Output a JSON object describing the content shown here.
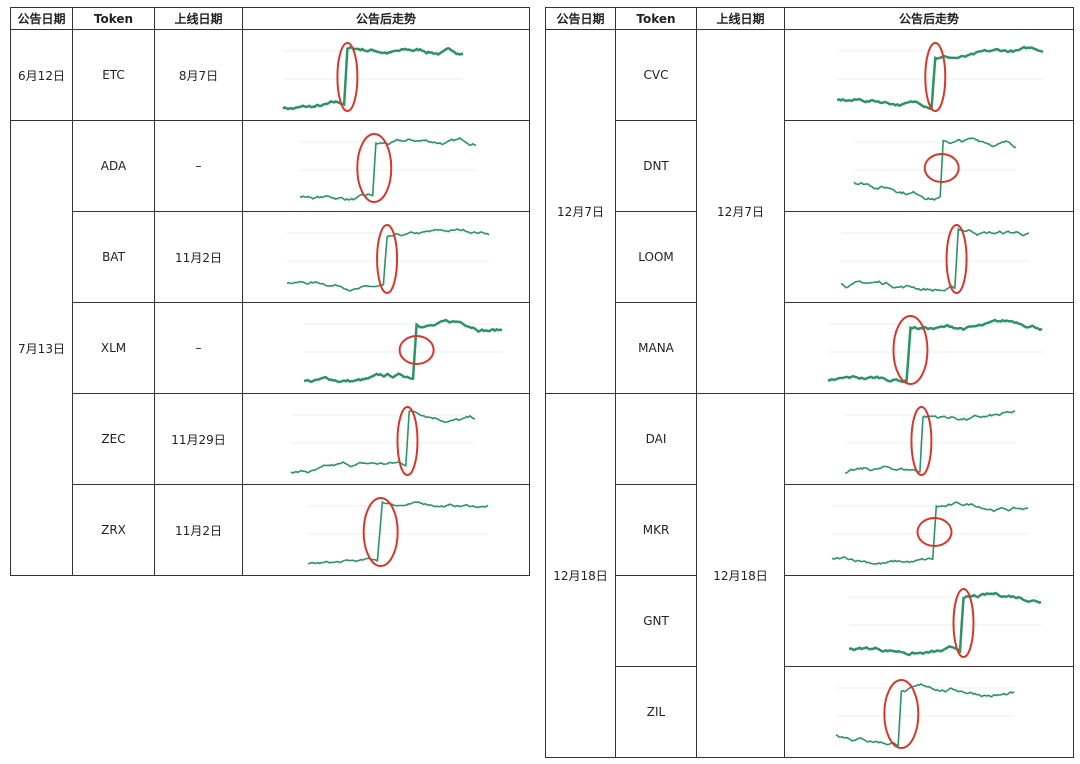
{
  "left_table": {
    "headers": [
      "公告日期",
      "Token",
      "上线日期",
      "公告后走势"
    ],
    "groups": [
      {
        "announce": "6月12日",
        "rows": [
          {
            "token": "ETC",
            "listing": "8月7日"
          }
        ]
      },
      {
        "announce": "7月13日",
        "rows": [
          {
            "token": "ADA",
            "listing": "–"
          },
          {
            "token": "BAT",
            "listing": "11月2日"
          },
          {
            "token": "XLM",
            "listing": "–"
          },
          {
            "token": "ZEC",
            "listing": "11月29日"
          },
          {
            "token": "ZRX",
            "listing": "11月2日"
          }
        ]
      }
    ]
  },
  "right_table": {
    "headers": [
      "公告日期",
      "Token",
      "上线日期",
      "公告后走势"
    ],
    "groups": [
      {
        "announce": "12月7日",
        "listing": "12月7日",
        "rows": [
          {
            "token": "CVC"
          },
          {
            "token": "DNT"
          },
          {
            "token": "LOOM"
          },
          {
            "token": "MANA"
          }
        ]
      },
      {
        "announce": "12月18日",
        "listing": "12月18日",
        "rows": [
          {
            "token": "DAI"
          },
          {
            "token": "MKR"
          },
          {
            "token": "GNT"
          },
          {
            "token": "ZIL"
          }
        ]
      }
    ]
  }
}
